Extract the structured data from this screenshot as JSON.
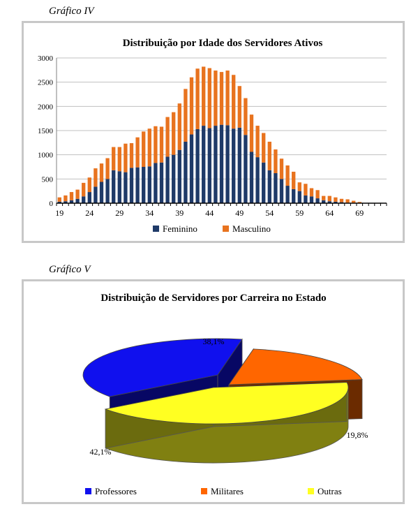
{
  "caption_1": "Gráfico IV",
  "caption_2": "Gráfico V",
  "chart_data": [
    {
      "type": "bar",
      "stacked": true,
      "title": "Distribuição por Idade dos Servidores Ativos",
      "xlabel": "",
      "ylabel": "",
      "ylim": [
        0,
        3000
      ],
      "yticks": [
        "0",
        "500",
        "1000",
        "1500",
        "2000",
        "2500",
        "3000"
      ],
      "xticks": [
        "19",
        "24",
        "29",
        "34",
        "39",
        "44",
        "49",
        "54",
        "59",
        "64",
        "69"
      ],
      "grid": true,
      "legend": "bottom",
      "categories": [
        19,
        20,
        21,
        22,
        23,
        24,
        25,
        26,
        27,
        28,
        29,
        30,
        31,
        32,
        33,
        34,
        35,
        36,
        37,
        38,
        39,
        40,
        41,
        42,
        43,
        44,
        45,
        46,
        47,
        48,
        49,
        50,
        51,
        52,
        53,
        54,
        55,
        56,
        57,
        58,
        59,
        60,
        61,
        62,
        63,
        64,
        65,
        66,
        67,
        68,
        69
      ],
      "series": [
        {
          "name": "Feminino",
          "color": "#1f3a68",
          "values": [
            30,
            40,
            60,
            90,
            140,
            230,
            340,
            440,
            500,
            680,
            660,
            640,
            730,
            740,
            750,
            760,
            830,
            840,
            960,
            1000,
            1100,
            1270,
            1420,
            1530,
            1600,
            1550,
            1600,
            1620,
            1610,
            1540,
            1560,
            1410,
            1060,
            950,
            840,
            680,
            620,
            500,
            360,
            290,
            250,
            160,
            140,
            100,
            60,
            40,
            30,
            20,
            10,
            10,
            5
          ]
        },
        {
          "name": "Masculino",
          "color": "#e8731f",
          "values": [
            90,
            120,
            170,
            190,
            280,
            300,
            380,
            380,
            430,
            480,
            500,
            590,
            510,
            620,
            730,
            780,
            760,
            740,
            820,
            880,
            960,
            1090,
            1180,
            1250,
            1220,
            1240,
            1140,
            1090,
            1130,
            1110,
            860,
            760,
            770,
            650,
            610,
            590,
            490,
            420,
            420,
            360,
            180,
            240,
            170,
            170,
            90,
            110,
            90,
            70,
            70,
            40,
            20
          ]
        }
      ]
    },
    {
      "type": "pie",
      "title": "Distribuição de Servidores por Carreira no Estado",
      "legend": "bottom",
      "slices": [
        {
          "name": "Professores",
          "value": 38.1,
          "label": "38,1%",
          "color": "#1010ee"
        },
        {
          "name": "Militares",
          "value": 19.8,
          "label": "19,8%",
          "color": "#ff6600"
        },
        {
          "name": "Outras",
          "value": 42.1,
          "label": "42,1%",
          "color": "#ffff22"
        }
      ]
    }
  ]
}
